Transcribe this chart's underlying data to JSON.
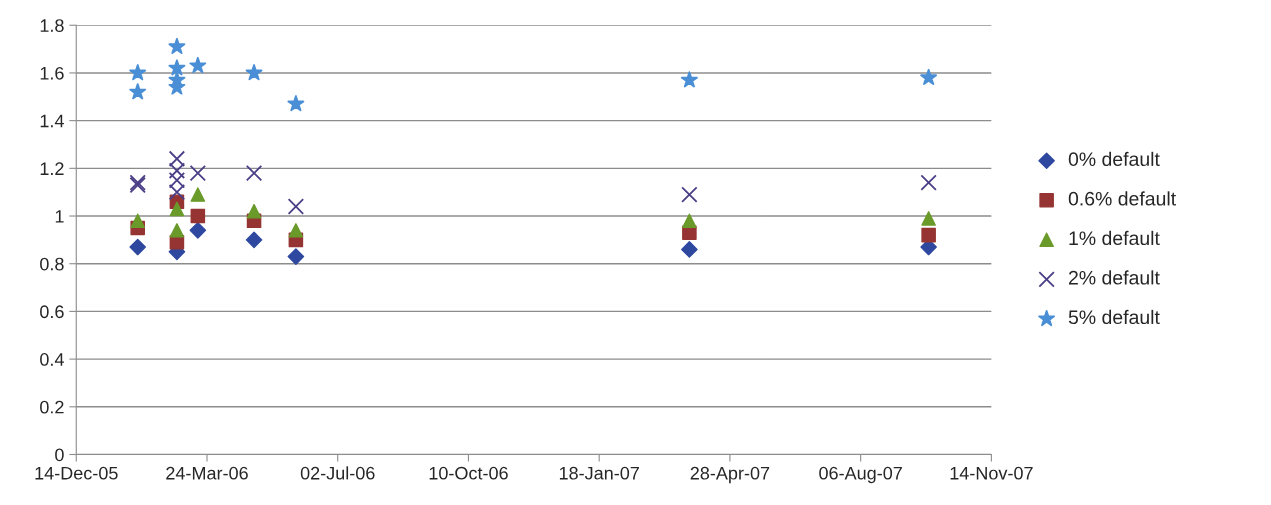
{
  "chart_data": {
    "type": "scatter",
    "xlim": [
      "2005-12-14",
      "2007-11-14"
    ],
    "xticks": [
      {
        "value": "2005-12-14",
        "label": "14-Dec-05"
      },
      {
        "value": "2006-03-24",
        "label": "24-Mar-06"
      },
      {
        "value": "2006-07-02",
        "label": "02-Jul-06"
      },
      {
        "value": "2006-10-10",
        "label": "10-Oct-06"
      },
      {
        "value": "2007-01-18",
        "label": "18-Jan-07"
      },
      {
        "value": "2007-04-28",
        "label": "28-Apr-07"
      },
      {
        "value": "2007-08-06",
        "label": "06-Aug-07"
      },
      {
        "value": "2007-11-14",
        "label": "14-Nov-07"
      }
    ],
    "ylim": [
      0,
      1.8
    ],
    "yticks": [
      0,
      0.2,
      0.4,
      0.6,
      0.8,
      1,
      1.2,
      1.4,
      1.6,
      1.8
    ],
    "grid": "y",
    "legend": "right",
    "series": [
      {
        "name": "0% default",
        "color": "#2e48a0",
        "marker": "diamond",
        "x": [
          "2006-01-30",
          "2006-03-01",
          "2006-03-17",
          "2006-04-29",
          "2006-05-31",
          "2007-03-28",
          "2007-09-27"
        ],
        "values": [
          0.87,
          0.85,
          0.94,
          0.9,
          0.83,
          0.86,
          0.87
        ]
      },
      {
        "name": "0.6% default",
        "color": "#953432",
        "marker": "square",
        "x": [
          "2006-01-30",
          "2006-03-01",
          "2006-03-01",
          "2006-03-17",
          "2006-04-29",
          "2006-05-31",
          "2007-03-28",
          "2007-09-27"
        ],
        "values": [
          0.95,
          1.06,
          0.89,
          1.0,
          0.98,
          0.9,
          0.93,
          0.92
        ]
      },
      {
        "name": "1% default",
        "color": "#6a9a2a",
        "marker": "triangle",
        "x": [
          "2006-01-30",
          "2006-03-01",
          "2006-03-01",
          "2006-03-17",
          "2006-04-29",
          "2006-05-31",
          "2007-03-28",
          "2007-09-27"
        ],
        "values": [
          0.98,
          1.03,
          0.94,
          1.09,
          1.02,
          0.94,
          0.98,
          0.99
        ]
      },
      {
        "name": "2% default",
        "color": "#4a3f86",
        "marker": "cross",
        "x": [
          "2006-01-30",
          "2006-01-30",
          "2006-03-01",
          "2006-03-01",
          "2006-03-01",
          "2006-03-01",
          "2006-03-17",
          "2006-04-29",
          "2006-05-31",
          "2007-03-28",
          "2007-09-27"
        ],
        "values": [
          1.13,
          1.14,
          1.24,
          1.19,
          1.15,
          1.1,
          1.18,
          1.18,
          1.04,
          1.09,
          1.14
        ]
      },
      {
        "name": "5% default",
        "color": "#4a8fd6",
        "marker": "star",
        "x": [
          "2006-01-30",
          "2006-01-30",
          "2006-03-01",
          "2006-03-01",
          "2006-03-01",
          "2006-03-01",
          "2006-03-17",
          "2006-04-29",
          "2006-05-31",
          "2007-03-28",
          "2007-09-27"
        ],
        "values": [
          1.6,
          1.52,
          1.71,
          1.62,
          1.57,
          1.54,
          1.63,
          1.6,
          1.47,
          1.57,
          1.58
        ]
      }
    ]
  }
}
